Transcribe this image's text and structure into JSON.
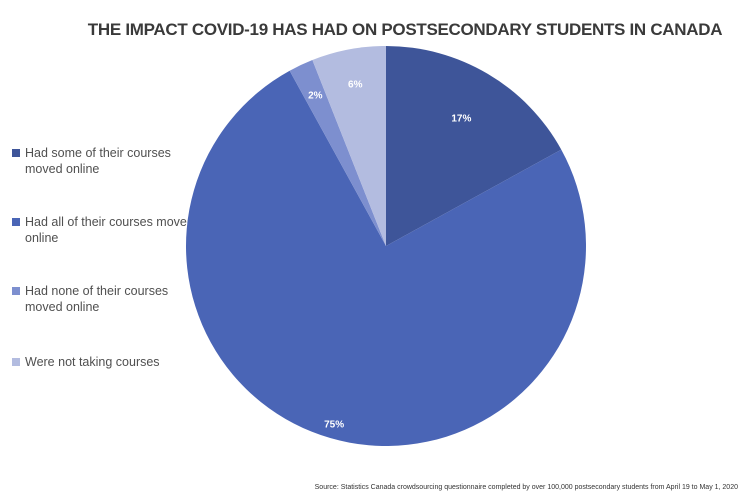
{
  "chart_data": {
    "type": "pie",
    "title": "THE IMPACT COVID-19 HAS HAD ON POSTSECONDARY STUDENTS IN CANADA",
    "legend_position": "left",
    "slices": [
      {
        "label": "Had some of their courses moved online",
        "value": 17,
        "data_label": "17%",
        "color": "#3e5599"
      },
      {
        "label": "Had all of their courses moved online",
        "value": 75,
        "data_label": "75%",
        "color": "#4a65b6"
      },
      {
        "label": "Had none of their courses moved online",
        "value": 2,
        "data_label": "2%",
        "color": "#7d8fcf"
      },
      {
        "label": "Were not taking courses",
        "value": 6,
        "data_label": "6%",
        "color": "#b3bce0"
      }
    ],
    "source": "Source: Statistics Canada  crowdsourcing questionnaire completed by over 100,000 postsecondary students from April 19 to May 1, 2020"
  }
}
